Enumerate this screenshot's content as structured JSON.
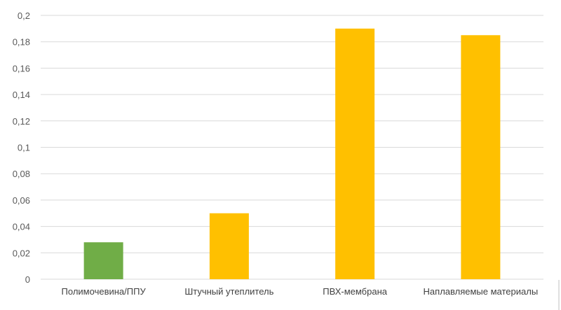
{
  "chart_data": {
    "type": "bar",
    "title": "",
    "xlabel": "",
    "ylabel": "",
    "categories": [
      "Полимочевина/ППУ",
      "Штучный утеплитель",
      "ПВХ-мембрана",
      "Наплавляемые материалы"
    ],
    "values": [
      0.028,
      0.05,
      0.19,
      0.185
    ],
    "bar_colors": [
      "#70AD47",
      "#FFC000",
      "#FFC000",
      "#FFC000"
    ],
    "ylim": [
      0,
      0.2
    ],
    "yticks": [
      0,
      0.02,
      0.04,
      0.06,
      0.08,
      0.1,
      0.12,
      0.14,
      0.16,
      0.18,
      0.2
    ],
    "ytick_labels": [
      "0",
      "0,02",
      "0,04",
      "0,06",
      "0,08",
      "0,1",
      "0,12",
      "0,14",
      "0,16",
      "0,18",
      "0,2"
    ],
    "grid": true,
    "legend": "none",
    "gridline_color": "#D9D9D9"
  }
}
